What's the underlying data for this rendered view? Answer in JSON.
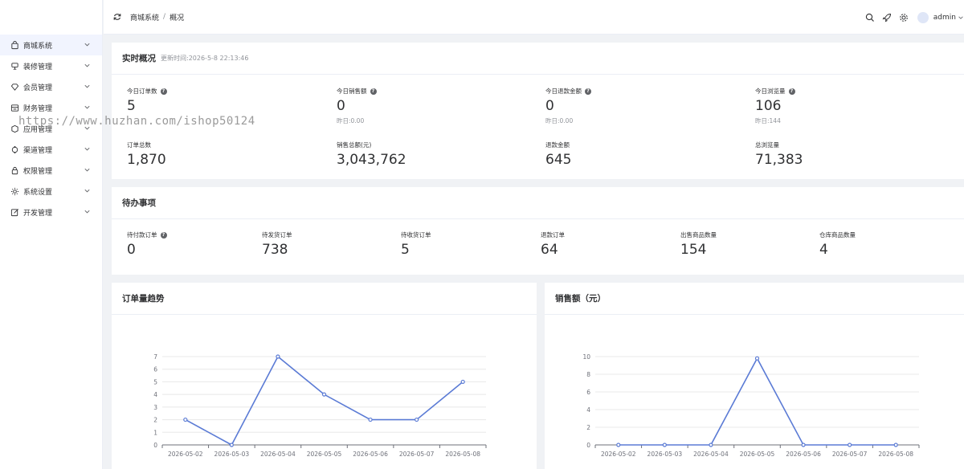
{
  "sidebar": {
    "items": [
      {
        "label": "商城系统",
        "icon": "bag-icon",
        "active": true
      },
      {
        "label": "装修管理",
        "icon": "brush-icon"
      },
      {
        "label": "会员管理",
        "icon": "diamond-icon"
      },
      {
        "label": "财务管理",
        "icon": "finance-icon"
      },
      {
        "label": "应用管理",
        "icon": "app-icon"
      },
      {
        "label": "渠道管理",
        "icon": "channel-icon"
      },
      {
        "label": "权限管理",
        "icon": "lock-icon"
      },
      {
        "label": "系统设置",
        "icon": "gear-icon"
      },
      {
        "label": "开发管理",
        "icon": "edit-icon"
      }
    ]
  },
  "header": {
    "breadcrumb": [
      "商城系统",
      "概况"
    ],
    "separator": "/",
    "user": "admin"
  },
  "watermark": "https://www.huzhan.com/ishop50124",
  "realtime": {
    "title": "实时概况",
    "updated": "更新时间:2026-5-8 22:13:46",
    "today": [
      {
        "label": "今日订单数",
        "value": "5",
        "sub": ""
      },
      {
        "label": "今日销售额",
        "value": "0",
        "sub": "昨日:0.00"
      },
      {
        "label": "今日退款金额",
        "value": "0",
        "sub": "昨日:0.00"
      },
      {
        "label": "今日浏览量",
        "value": "106",
        "sub": "昨日:144"
      }
    ],
    "totals": [
      {
        "label": "订单总数",
        "value": "1,870"
      },
      {
        "label": "销售总额(元)",
        "value": "3,043,762"
      },
      {
        "label": "退款金额",
        "value": "645"
      },
      {
        "label": "总浏览量",
        "value": "71,383"
      }
    ]
  },
  "todo": {
    "title": "待办事项",
    "items": [
      {
        "label": "待付款订单",
        "value": "0"
      },
      {
        "label": "待发货订单",
        "value": "738"
      },
      {
        "label": "待收货订单",
        "value": "5"
      },
      {
        "label": "退款订单",
        "value": "64"
      },
      {
        "label": "出售商品数量",
        "value": "154"
      },
      {
        "label": "仓库商品数量",
        "value": "4"
      }
    ]
  },
  "colors": {
    "line": "#5b7bd5",
    "grid": "#e8e8e8",
    "axis": "#6e7079"
  },
  "chart_data": [
    {
      "type": "line",
      "title": "订单量趋势",
      "categories": [
        "2026-05-02",
        "2026-05-03",
        "2026-05-04",
        "2026-05-05",
        "2026-05-06",
        "2026-05-07",
        "2026-05-08"
      ],
      "values": [
        2,
        0,
        7,
        4,
        2,
        2,
        5
      ],
      "ylim": [
        0,
        7
      ],
      "yticks": [
        0,
        1,
        2,
        3,
        4,
        5,
        6,
        7
      ],
      "grid": true
    },
    {
      "type": "line",
      "title": "销售额（元）",
      "categories": [
        "2026-05-02",
        "2026-05-03",
        "2026-05-04",
        "2026-05-05",
        "2026-05-06",
        "2026-05-07",
        "2026-05-08"
      ],
      "values": [
        0,
        0,
        0,
        9.8,
        0,
        0,
        0
      ],
      "ylim": [
        0,
        10
      ],
      "yticks": [
        0,
        2,
        4,
        6,
        8,
        10
      ],
      "grid": true
    }
  ]
}
